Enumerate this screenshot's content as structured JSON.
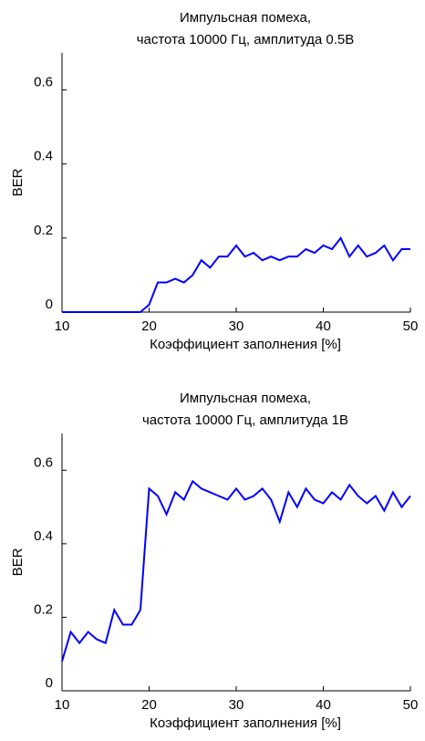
{
  "chart_data": [
    {
      "type": "line",
      "title": [
        "Импульсная помеха,",
        "частота 10000 Гц, амплитуда 0.5В"
      ],
      "x_label": "Коэффициент заполнения [%]",
      "y_label": "BER",
      "x": [
        10,
        11,
        12,
        13,
        14,
        15,
        16,
        17,
        18,
        19,
        20,
        21,
        22,
        23,
        24,
        25,
        26,
        27,
        28,
        29,
        30,
        31,
        32,
        33,
        34,
        35,
        36,
        37,
        38,
        39,
        40,
        41,
        42,
        43,
        44,
        45,
        46,
        47,
        48,
        49,
        50
      ],
      "series": [
        {
          "color": "#0000ff",
          "values": [
            0,
            0,
            0,
            0,
            0,
            0,
            0,
            0,
            0,
            0,
            0.02,
            0.08,
            0.08,
            0.09,
            0.08,
            0.1,
            0.14,
            0.12,
            0.15,
            0.15,
            0.18,
            0.15,
            0.16,
            0.14,
            0.15,
            0.14,
            0.15,
            0.15,
            0.17,
            0.16,
            0.18,
            0.17,
            0.2,
            0.15,
            0.18,
            0.15,
            0.16,
            0.18,
            0.14,
            0.17,
            0.17
          ]
        }
      ],
      "xlim": [
        10,
        50
      ],
      "xticks": [
        10,
        20,
        30,
        40,
        50
      ],
      "ylim": [
        0,
        0.7
      ],
      "yticks": [
        0,
        0.2,
        0.4,
        0.6
      ]
    },
    {
      "type": "line",
      "title": [
        "Импульсная помеха,",
        "частота 10000 Гц, амплитуда 1В"
      ],
      "x_label": "Коэффициент заполнения [%]",
      "y_label": "BER",
      "x": [
        10,
        11,
        12,
        13,
        14,
        15,
        16,
        17,
        18,
        19,
        20,
        21,
        22,
        23,
        24,
        25,
        26,
        27,
        28,
        29,
        30,
        31,
        32,
        33,
        34,
        35,
        36,
        37,
        38,
        39,
        40,
        41,
        42,
        43,
        44,
        45,
        46,
        47,
        48,
        49,
        50
      ],
      "series": [
        {
          "color": "#0000ff",
          "values": [
            0.08,
            0.16,
            0.13,
            0.16,
            0.14,
            0.13,
            0.22,
            0.18,
            0.18,
            0.22,
            0.55,
            0.53,
            0.48,
            0.54,
            0.52,
            0.57,
            0.55,
            0.54,
            0.53,
            0.52,
            0.55,
            0.52,
            0.53,
            0.55,
            0.52,
            0.46,
            0.54,
            0.5,
            0.55,
            0.52,
            0.51,
            0.54,
            0.52,
            0.56,
            0.53,
            0.51,
            0.53,
            0.49,
            0.54,
            0.5,
            0.53
          ]
        }
      ],
      "xlim": [
        10,
        50
      ],
      "xticks": [
        10,
        20,
        30,
        40,
        50
      ],
      "ylim": [
        0,
        0.7
      ],
      "yticks": [
        0,
        0.2,
        0.4,
        0.6
      ]
    }
  ]
}
